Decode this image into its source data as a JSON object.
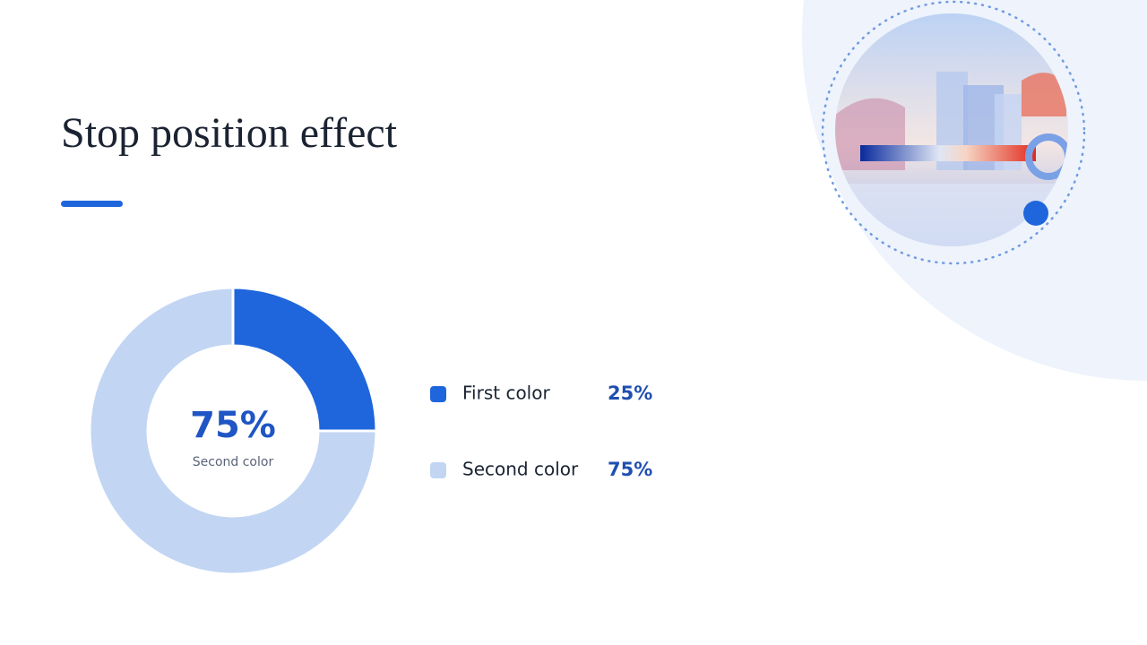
{
  "chart_data": {
    "type": "donut",
    "title": "Stop position effect",
    "categories": [
      "First color",
      "Second color"
    ],
    "values": [
      25,
      75
    ],
    "value_labels": [
      "25%",
      "75%"
    ],
    "colors": [
      "#1f66dc",
      "#c2d5f3"
    ],
    "center_text": "75%",
    "center_caption": "Second color"
  }
}
